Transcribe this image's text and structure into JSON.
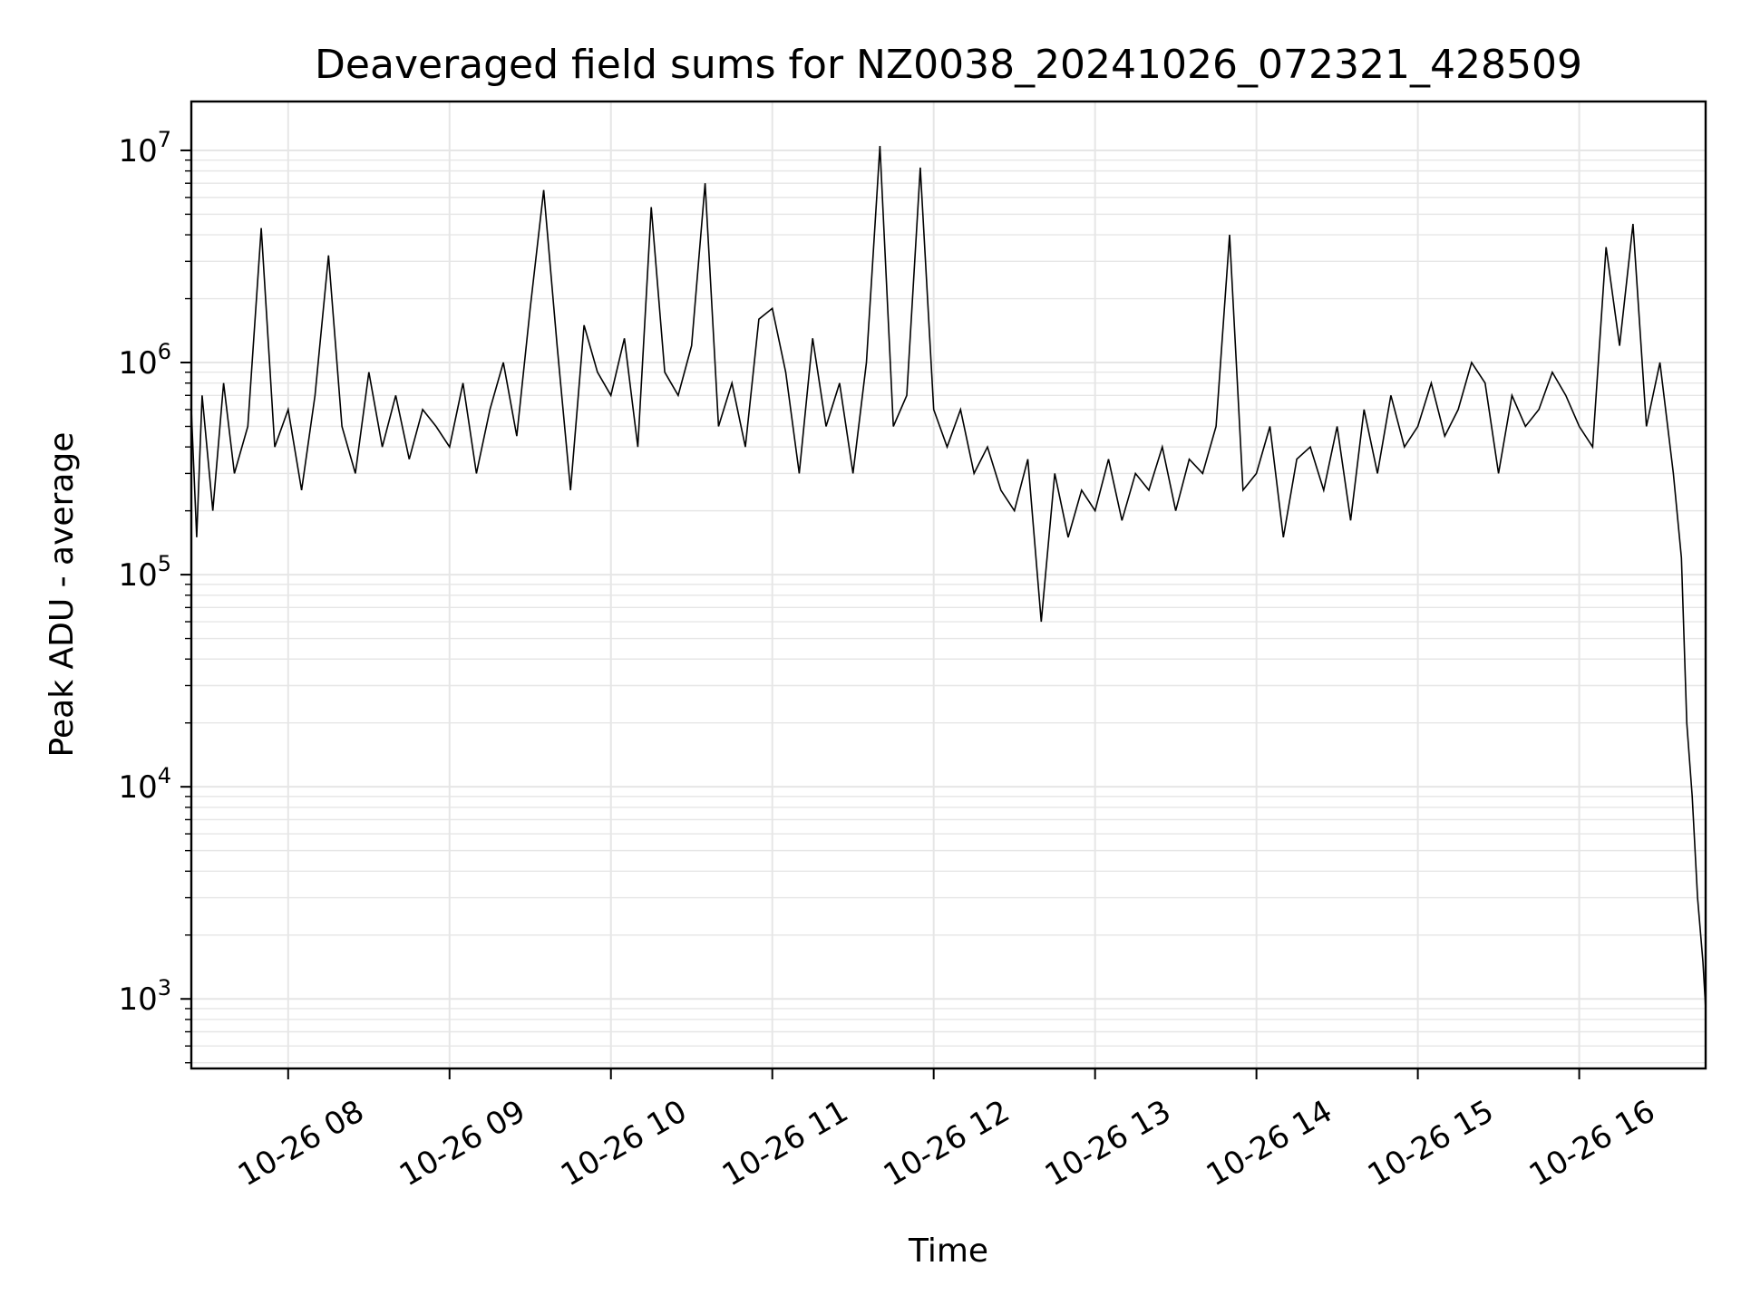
{
  "chart_data": {
    "type": "line",
    "title": "Deaveraged field sums for NZ0038_20241026_072321_428509",
    "xlabel": "Time",
    "ylabel": "Peak ADU - average",
    "yscale": "log",
    "ylim": [
      470,
      17000000
    ],
    "xlim": [
      "2024-10-26 07:24",
      "2024-10-26 16:47"
    ],
    "grid": true,
    "line_color": "#000000",
    "grid_color": "#e6e6e6",
    "x_ticks": [
      {
        "value": "2024-10-26 08:00",
        "label": "10-26 08"
      },
      {
        "value": "2024-10-26 09:00",
        "label": "10-26 09"
      },
      {
        "value": "2024-10-26 10:00",
        "label": "10-26 10"
      },
      {
        "value": "2024-10-26 11:00",
        "label": "10-26 11"
      },
      {
        "value": "2024-10-26 12:00",
        "label": "10-26 12"
      },
      {
        "value": "2024-10-26 13:00",
        "label": "10-26 13"
      },
      {
        "value": "2024-10-26 14:00",
        "label": "10-26 14"
      },
      {
        "value": "2024-10-26 15:00",
        "label": "10-26 15"
      },
      {
        "value": "2024-10-26 16:00",
        "label": "10-26 16"
      }
    ],
    "y_ticks": [
      {
        "value": 1000,
        "base": "10",
        "exp": "3"
      },
      {
        "value": 10000,
        "base": "10",
        "exp": "4"
      },
      {
        "value": 100000,
        "base": "10",
        "exp": "5"
      },
      {
        "value": 1000000,
        "base": "10",
        "exp": "6"
      },
      {
        "value": 10000000,
        "base": "10",
        "exp": "7"
      }
    ],
    "series": [
      {
        "x": [
          "2024-10-26 07:24",
          "2024-10-26 07:26",
          "2024-10-26 07:28",
          "2024-10-26 07:32",
          "2024-10-26 07:36",
          "2024-10-26 07:40",
          "2024-10-26 07:45",
          "2024-10-26 07:50",
          "2024-10-26 07:55",
          "2024-10-26 08:00",
          "2024-10-26 08:05",
          "2024-10-26 08:10",
          "2024-10-26 08:15",
          "2024-10-26 08:20",
          "2024-10-26 08:25",
          "2024-10-26 08:30",
          "2024-10-26 08:35",
          "2024-10-26 08:40",
          "2024-10-26 08:45",
          "2024-10-26 08:50",
          "2024-10-26 08:55",
          "2024-10-26 09:00",
          "2024-10-26 09:05",
          "2024-10-26 09:10",
          "2024-10-26 09:15",
          "2024-10-26 09:20",
          "2024-10-26 09:25",
          "2024-10-26 09:30",
          "2024-10-26 09:35",
          "2024-10-26 09:40",
          "2024-10-26 09:45",
          "2024-10-26 09:50",
          "2024-10-26 09:55",
          "2024-10-26 10:00",
          "2024-10-26 10:05",
          "2024-10-26 10:10",
          "2024-10-26 10:15",
          "2024-10-26 10:20",
          "2024-10-26 10:25",
          "2024-10-26 10:30",
          "2024-10-26 10:35",
          "2024-10-26 10:40",
          "2024-10-26 10:45",
          "2024-10-26 10:50",
          "2024-10-26 10:55",
          "2024-10-26 11:00",
          "2024-10-26 11:05",
          "2024-10-26 11:10",
          "2024-10-26 11:15",
          "2024-10-26 11:20",
          "2024-10-26 11:25",
          "2024-10-26 11:30",
          "2024-10-26 11:35",
          "2024-10-26 11:40",
          "2024-10-26 11:45",
          "2024-10-26 11:50",
          "2024-10-26 11:55",
          "2024-10-26 12:00",
          "2024-10-26 12:05",
          "2024-10-26 12:10",
          "2024-10-26 12:15",
          "2024-10-26 12:20",
          "2024-10-26 12:25",
          "2024-10-26 12:30",
          "2024-10-26 12:35",
          "2024-10-26 12:40",
          "2024-10-26 12:45",
          "2024-10-26 12:50",
          "2024-10-26 12:55",
          "2024-10-26 13:00",
          "2024-10-26 13:05",
          "2024-10-26 13:10",
          "2024-10-26 13:15",
          "2024-10-26 13:20",
          "2024-10-26 13:25",
          "2024-10-26 13:30",
          "2024-10-26 13:35",
          "2024-10-26 13:40",
          "2024-10-26 13:45",
          "2024-10-26 13:50",
          "2024-10-26 13:55",
          "2024-10-26 14:00",
          "2024-10-26 14:05",
          "2024-10-26 14:10",
          "2024-10-26 14:15",
          "2024-10-26 14:20",
          "2024-10-26 14:25",
          "2024-10-26 14:30",
          "2024-10-26 14:35",
          "2024-10-26 14:40",
          "2024-10-26 14:45",
          "2024-10-26 14:50",
          "2024-10-26 14:55",
          "2024-10-26 15:00",
          "2024-10-26 15:05",
          "2024-10-26 15:10",
          "2024-10-26 15:15",
          "2024-10-26 15:20",
          "2024-10-26 15:25",
          "2024-10-26 15:30",
          "2024-10-26 15:35",
          "2024-10-26 15:40",
          "2024-10-26 15:45",
          "2024-10-26 15:50",
          "2024-10-26 15:55",
          "2024-10-26 16:00",
          "2024-10-26 16:05",
          "2024-10-26 16:10",
          "2024-10-26 16:15",
          "2024-10-26 16:20",
          "2024-10-26 16:25",
          "2024-10-26 16:30",
          "2024-10-26 16:35",
          "2024-10-26 16:38",
          "2024-10-26 16:40",
          "2024-10-26 16:42",
          "2024-10-26 16:44",
          "2024-10-26 16:46",
          "2024-10-26 16:47"
        ],
        "values": [
          600000,
          150000,
          700000,
          200000,
          800000,
          300000,
          500000,
          4300000,
          400000,
          600000,
          250000,
          700000,
          3200000,
          500000,
          300000,
          900000,
          400000,
          700000,
          350000,
          600000,
          500000,
          400000,
          800000,
          300000,
          600000,
          1000000,
          450000,
          1800000,
          6500000,
          1200000,
          250000,
          1500000,
          900000,
          700000,
          1300000,
          400000,
          5400000,
          900000,
          700000,
          1200000,
          7000000,
          500000,
          800000,
          400000,
          1600000,
          1800000,
          900000,
          300000,
          1300000,
          500000,
          800000,
          300000,
          1000000,
          10500000,
          500000,
          700000,
          8300000,
          600000,
          400000,
          600000,
          300000,
          400000,
          250000,
          200000,
          350000,
          60000,
          300000,
          150000,
          250000,
          200000,
          350000,
          180000,
          300000,
          250000,
          400000,
          200000,
          350000,
          300000,
          500000,
          4000000,
          250000,
          300000,
          500000,
          150000,
          350000,
          400000,
          250000,
          500000,
          180000,
          600000,
          300000,
          700000,
          400000,
          500000,
          800000,
          450000,
          600000,
          1000000,
          800000,
          300000,
          700000,
          500000,
          600000,
          900000,
          700000,
          500000,
          400000,
          3500000,
          1200000,
          4500000,
          500000,
          1000000,
          300000,
          120000,
          20000,
          9000,
          3000,
          1500,
          900
        ]
      }
    ]
  }
}
